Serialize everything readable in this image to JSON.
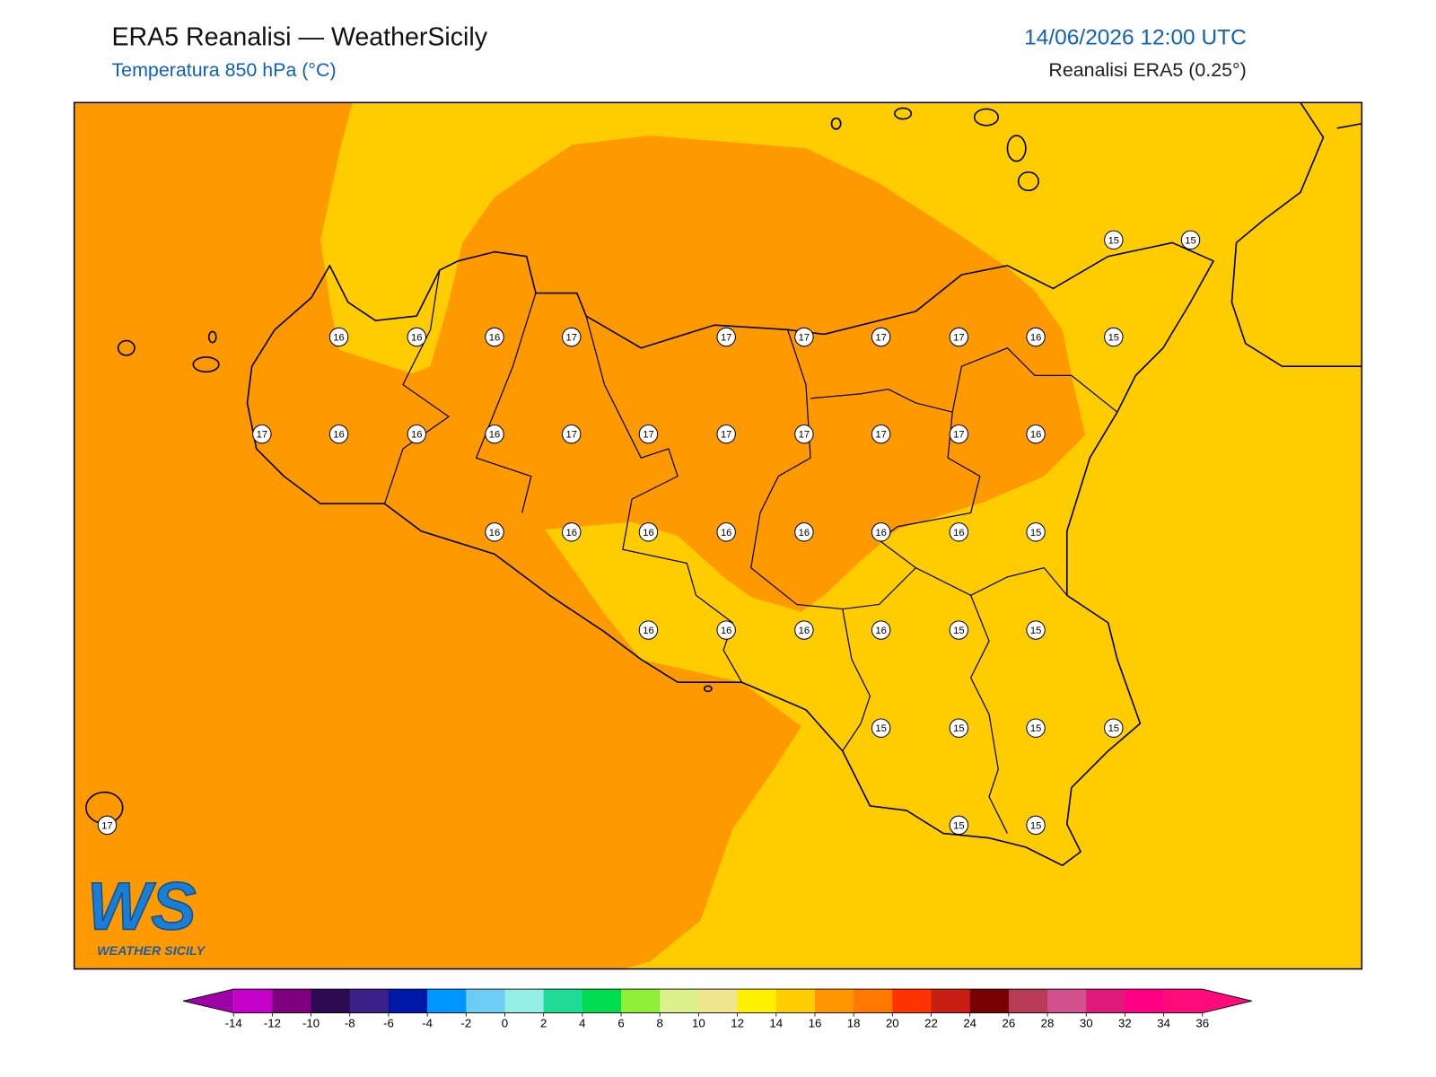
{
  "header": {
    "title": "ERA5 Reanalisi — WeatherSicily",
    "subtitle": "Temperatura 850 hPa (°C)",
    "datetime": "14/06/2026 12:00 UTC",
    "source": "Reanalisi ERA5 (0.25°)"
  },
  "stations": [
    15,
    15,
    16,
    16,
    16,
    17,
    17,
    17,
    17,
    17,
    16,
    15,
    17,
    16,
    16,
    16,
    17,
    17,
    17,
    17,
    17,
    17,
    16,
    16,
    16,
    16,
    16,
    16,
    16,
    16,
    15,
    16,
    16,
    16,
    16,
    15,
    15,
    15,
    15,
    15,
    15,
    17,
    15,
    15
  ],
  "colorbar": {
    "ticks": [
      -14,
      -12,
      -10,
      -8,
      -6,
      -4,
      -2,
      0,
      2,
      4,
      6,
      8,
      10,
      12,
      14,
      16,
      18,
      20,
      22,
      24,
      26,
      28,
      30,
      32,
      34,
      36
    ],
    "colors": [
      "#c400c8",
      "#7f007f",
      "#2e0a52",
      "#3a1f88",
      "#0018a8",
      "#0096ff",
      "#6cccf4",
      "#96efe4",
      "#1edc96",
      "#00dc50",
      "#8ef034",
      "#dcf08c",
      "#efe68e",
      "#fff000",
      "#ffcd00",
      "#ff9600",
      "#ff7800",
      "#ff3200",
      "#c81e14",
      "#780000",
      "#b83a55",
      "#d2508c",
      "#e0187a",
      "#ff0084",
      "#ff0a7a"
    ],
    "under": "#a000a8",
    "over": "#ff0a7a"
  },
  "logo": {
    "mark": "WS",
    "text": "WEATHER SICILY"
  }
}
